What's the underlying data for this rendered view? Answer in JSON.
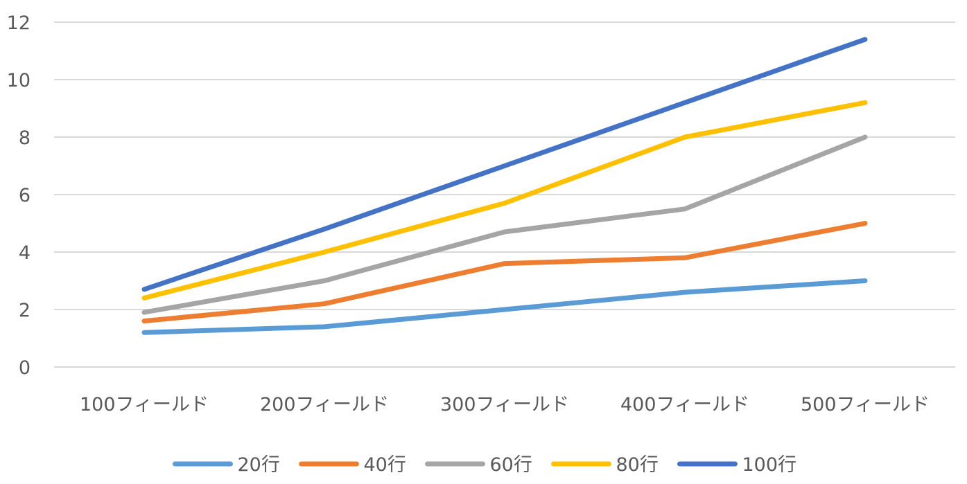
{
  "chart_data": {
    "type": "line",
    "categories": [
      "100フィールド",
      "200フィールド",
      "300フィールド",
      "400フィールド",
      "500フィールド"
    ],
    "series": [
      {
        "name": "20行",
        "color": "#5b9bd5",
        "values": [
          1.2,
          1.4,
          2.0,
          2.6,
          3.0
        ]
      },
      {
        "name": "40行",
        "color": "#ed7d31",
        "values": [
          1.6,
          2.2,
          3.6,
          3.8,
          5.0
        ]
      },
      {
        "name": "60行",
        "color": "#a5a5a5",
        "values": [
          1.9,
          3.0,
          4.7,
          5.5,
          8.0
        ]
      },
      {
        "name": "80行",
        "color": "#ffc000",
        "values": [
          2.4,
          4.0,
          5.7,
          8.0,
          9.2
        ]
      },
      {
        "name": "100行",
        "color": "#4472c4",
        "values": [
          2.7,
          4.8,
          7.0,
          9.2,
          11.4
        ]
      }
    ],
    "yticks": [
      "0",
      "2",
      "4",
      "6",
      "8",
      "10",
      "12"
    ],
    "ylim": [
      0,
      12
    ],
    "grid": true,
    "legend": "bottom",
    "title": "",
    "xlabel": "",
    "ylabel": ""
  }
}
